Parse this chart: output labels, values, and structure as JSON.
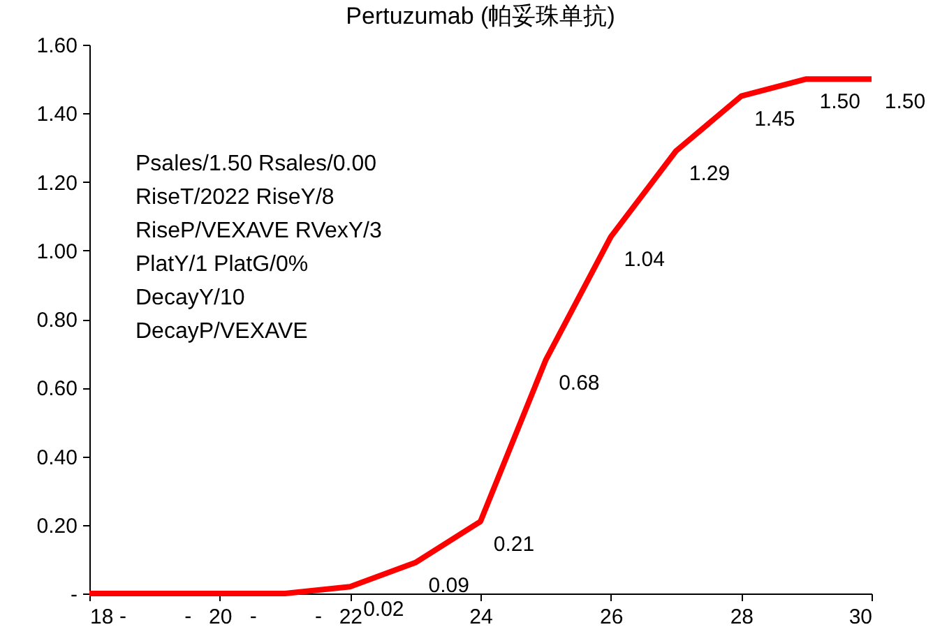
{
  "chart_data": {
    "type": "line",
    "title": "Pertuzumab (帕妥珠单抗)",
    "x": [
      18,
      19,
      20,
      21,
      22,
      23,
      24,
      25,
      26,
      27,
      28,
      29,
      30
    ],
    "series": [
      {
        "color": "#ff0000",
        "values": [
          0,
          0,
          0,
          0,
          0.02,
          0.09,
          0.21,
          0.68,
          1.04,
          1.29,
          1.45,
          1.5,
          1.5
        ],
        "value_labels": [
          "-",
          "-",
          "-",
          "-",
          "0.02",
          "0.09",
          "0.21",
          "0.68",
          "1.04",
          "1.29",
          "1.45",
          "1.50",
          "1.50"
        ]
      }
    ],
    "xlim": [
      18,
      30
    ],
    "xticks": [
      18,
      20,
      22,
      24,
      26,
      28,
      30
    ],
    "ylim": [
      0,
      1.6
    ],
    "yticks": [
      {
        "value": 0,
        "label": "-"
      },
      {
        "value": 0.2,
        "label": "0.20"
      },
      {
        "value": 0.4,
        "label": "0.40"
      },
      {
        "value": 0.6,
        "label": "0.60"
      },
      {
        "value": 0.8,
        "label": "0.80"
      },
      {
        "value": 1.0,
        "label": "1.00"
      },
      {
        "value": 1.2,
        "label": "1.20"
      },
      {
        "value": 1.4,
        "label": "1.40"
      },
      {
        "value": 1.6,
        "label": "1.60"
      }
    ],
    "marker": "none",
    "line_style": "solid",
    "annotations": [
      "Psales/1.50 Rsales/0.00",
      "RiseT/2022 RiseY/8",
      "RiseP/VEXAVE RVexY/3",
      "PlatY/1 PlatG/0%",
      "DecayY/10",
      "DecayP/VEXAVE"
    ]
  }
}
